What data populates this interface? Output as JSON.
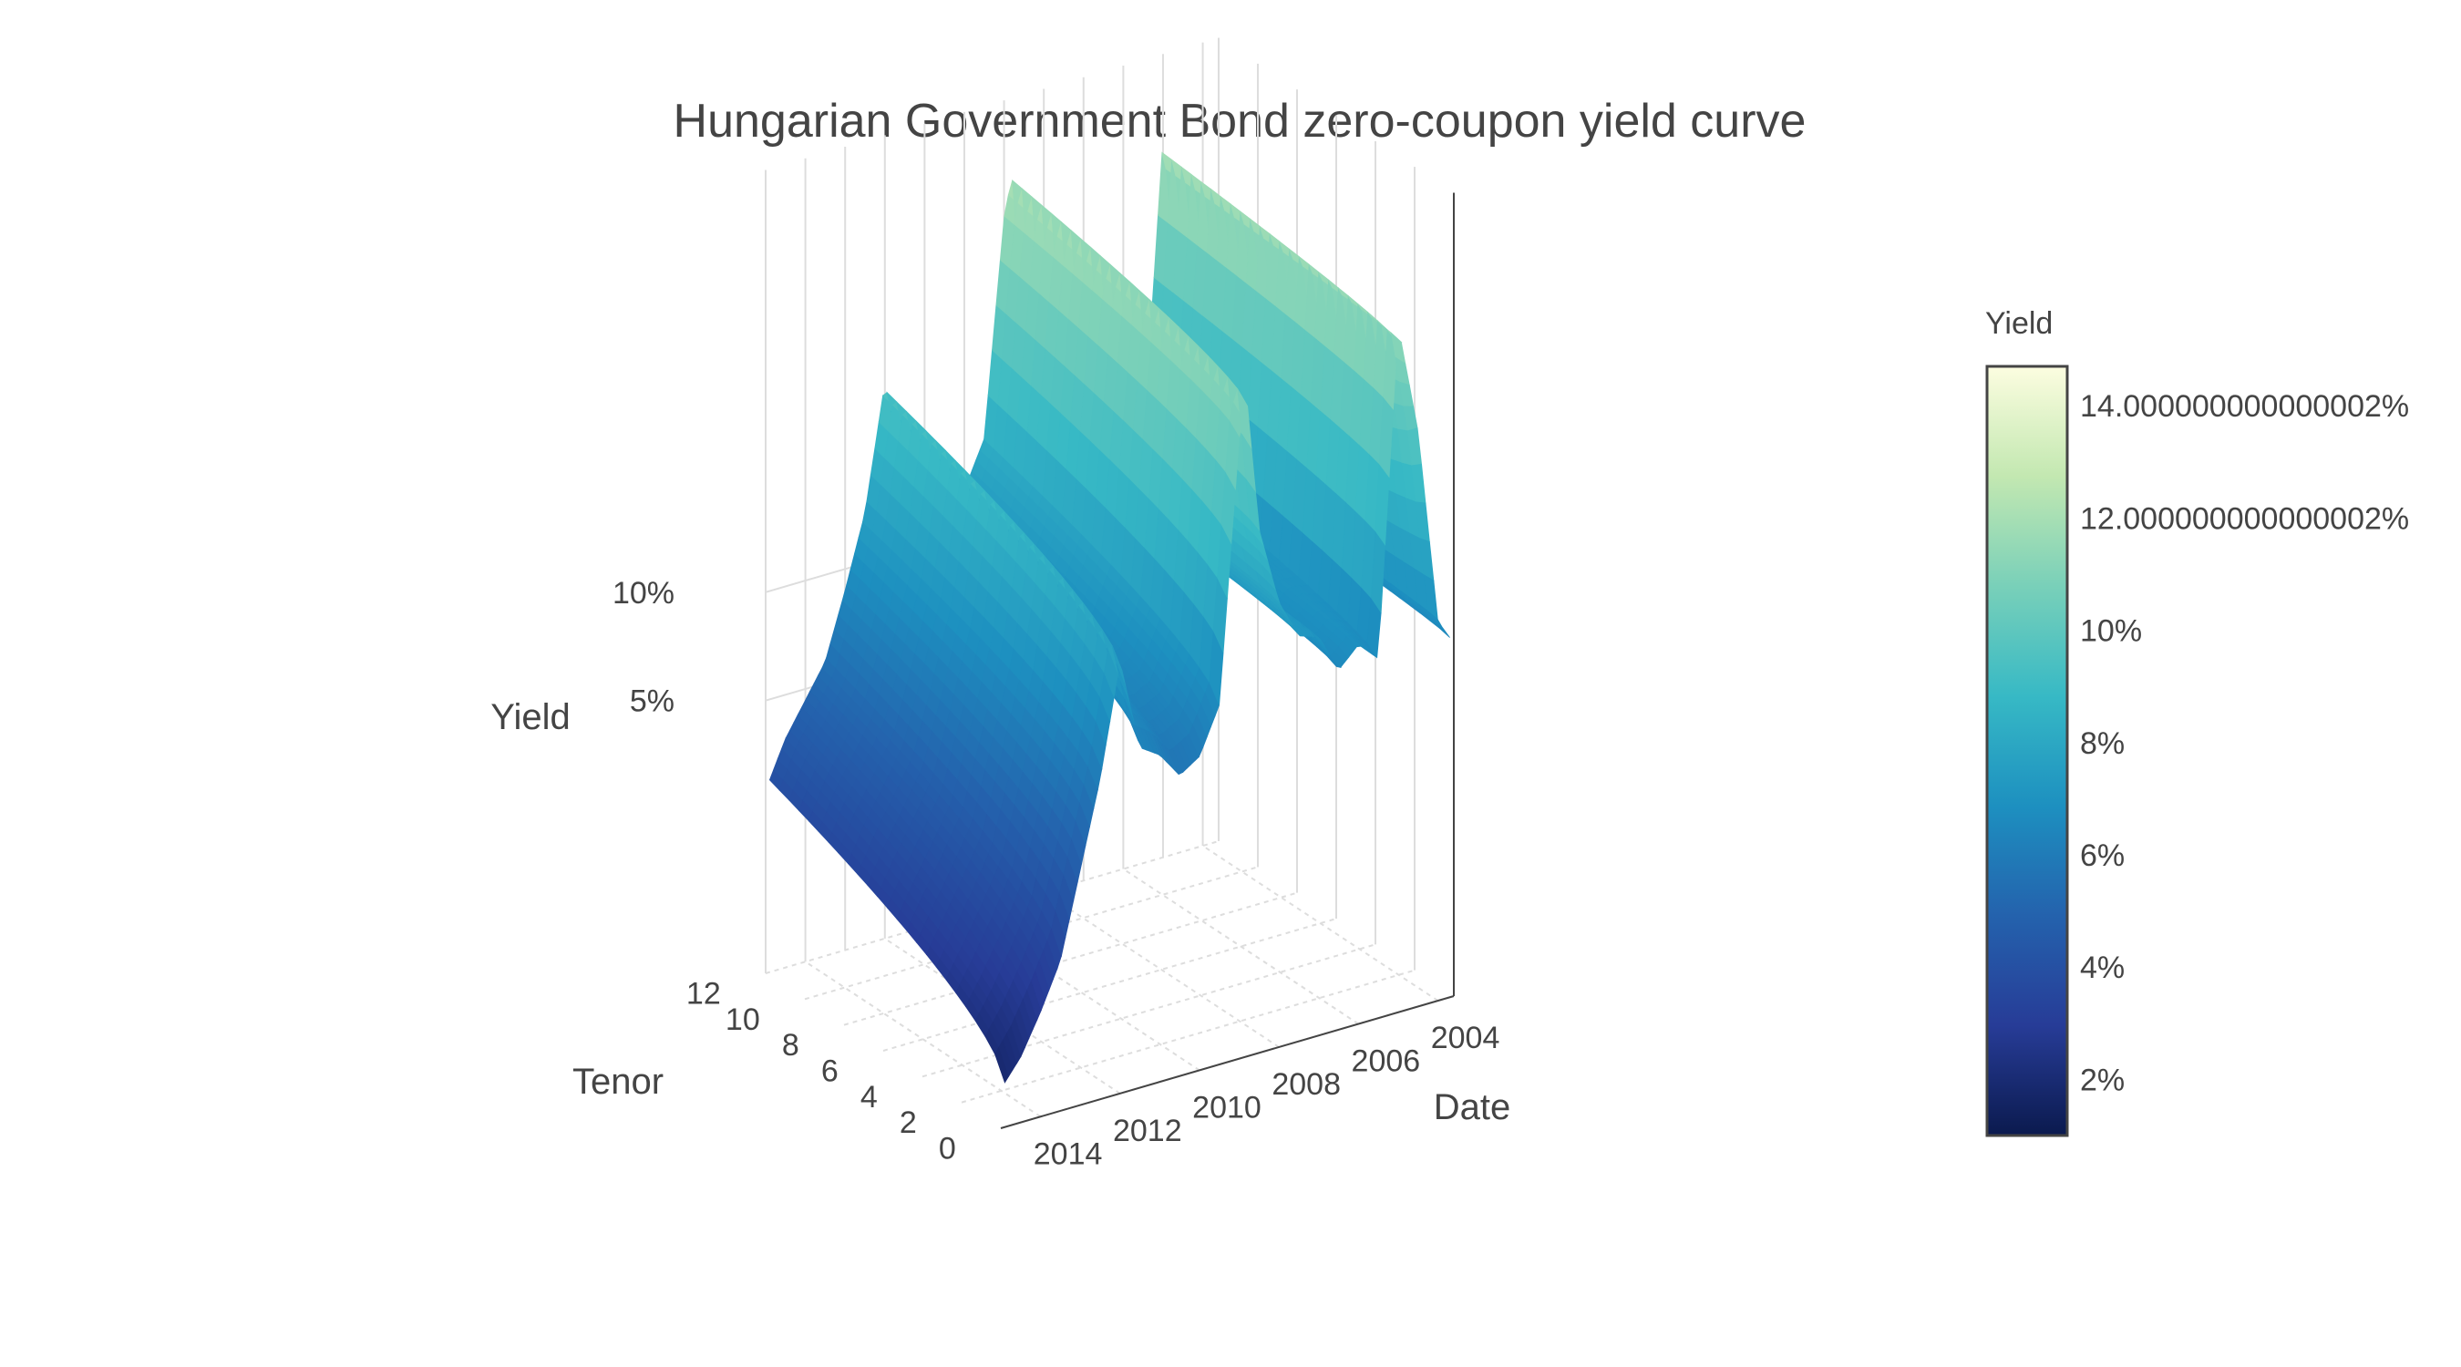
{
  "chart_data": {
    "type": "surface",
    "title": "Hungarian Government Bond zero-coupon yield curve",
    "axes": {
      "x": {
        "label": "Date",
        "ticks": [
          "2004",
          "2006",
          "2008",
          "2010",
          "2012",
          "2014"
        ]
      },
      "y": {
        "label": "Tenor",
        "ticks": [
          "0",
          "2",
          "4",
          "6",
          "8",
          "10",
          "12"
        ]
      },
      "z": {
        "label": "Yield",
        "ticks": [
          "5%",
          "10%"
        ]
      }
    },
    "grid": true,
    "colorbar": {
      "title": "Yield",
      "range": [
        1,
        14.7
      ],
      "ticks": [
        {
          "value": 2,
          "label": "2%"
        },
        {
          "value": 4,
          "label": "4%"
        },
        {
          "value": 6,
          "label": "6%"
        },
        {
          "value": 8,
          "label": "8%"
        },
        {
          "value": 10,
          "label": "10%"
        },
        {
          "value": 12,
          "label": "12.000000000000002%"
        },
        {
          "value": 14,
          "label": "14.000000000000002%"
        }
      ],
      "colorscale": [
        "#0b1a4e",
        "#273c97",
        "#2462ad",
        "#1d90c0",
        "#37b9c5",
        "#79d0b9",
        "#c3e8b1",
        "#fcfde0"
      ]
    },
    "series": [
      {
        "dates": [
          2003.5,
          2004,
          2004.5,
          2005,
          2005.5,
          2006,
          2006.5,
          2007,
          2007.5,
          2008,
          2008.5,
          2008.8,
          2009,
          2009.5,
          2010,
          2010.5,
          2011,
          2011.5,
          2012,
          2012.5,
          2013,
          2013.5,
          2014,
          2014.5,
          2015
        ],
        "yield_short_tenor": [
          6.3,
          6.8,
          9.8,
          11.5,
          6.5,
          6.8,
          6.5,
          7.1,
          7.2,
          7.8,
          9.0,
          11.0,
          10.5,
          6.5,
          5.8,
          5.6,
          6.0,
          6.2,
          7.6,
          5.9,
          4.6,
          3.3,
          2.6,
          2.0,
          1.6
        ],
        "yield_long_tenor": [
          6.6,
          7.0,
          8.8,
          12.0,
          7.4,
          7.2,
          7.0,
          7.3,
          7.6,
          8.2,
          9.6,
          12.1,
          11.5,
          8.2,
          7.5,
          7.4,
          7.7,
          8.0,
          9.5,
          7.6,
          6.5,
          5.5,
          5.0,
          4.5,
          3.8
        ]
      }
    ]
  }
}
